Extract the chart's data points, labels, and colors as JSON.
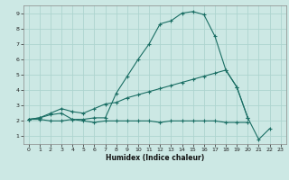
{
  "xlabel": "Humidex (Indice chaleur)",
  "background_color": "#cce8e4",
  "grid_color": "#aed4cf",
  "line_color": "#1a6e64",
  "xlim": [
    -0.5,
    23.5
  ],
  "ylim": [
    0.5,
    9.5
  ],
  "xticks": [
    0,
    1,
    2,
    3,
    4,
    5,
    6,
    7,
    8,
    9,
    10,
    11,
    12,
    13,
    14,
    15,
    16,
    17,
    18,
    19,
    20,
    21,
    22,
    23
  ],
  "yticks": [
    1,
    2,
    3,
    4,
    5,
    6,
    7,
    8,
    9
  ],
  "line1_y": [
    2.1,
    2.2,
    2.4,
    2.5,
    2.1,
    2.1,
    2.2,
    2.2,
    3.8,
    4.9,
    6.0,
    7.0,
    8.3,
    8.5,
    9.0,
    9.1,
    8.9,
    7.5,
    5.3,
    4.2,
    2.2,
    0.8,
    1.5,
    null
  ],
  "line2_y": [
    2.1,
    2.2,
    2.5,
    2.8,
    2.6,
    2.5,
    2.8,
    3.1,
    3.2,
    3.5,
    3.7,
    3.9,
    4.1,
    4.3,
    4.5,
    4.7,
    4.9,
    5.1,
    5.3,
    4.2,
    2.2,
    null,
    null,
    null
  ],
  "line3_y": [
    2.1,
    2.1,
    2.0,
    2.0,
    2.1,
    2.0,
    1.9,
    2.0,
    2.0,
    2.0,
    2.0,
    2.0,
    1.9,
    2.0,
    2.0,
    2.0,
    2.0,
    2.0,
    1.9,
    1.9,
    1.9,
    null,
    null,
    null
  ]
}
